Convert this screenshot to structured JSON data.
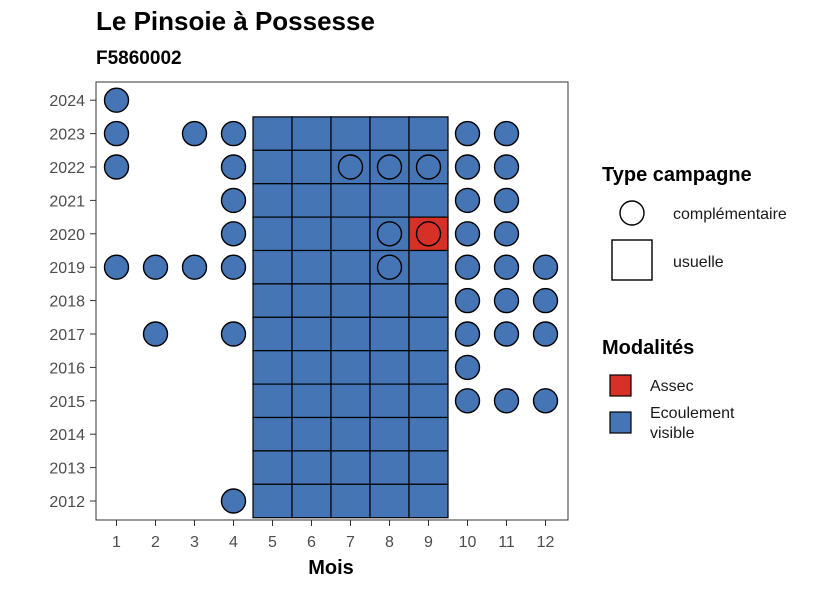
{
  "chart_data": {
    "type": "heatmap",
    "title": "Le Pinsoie à Possesse",
    "subtitle": "F5860002",
    "xlabel": "Mois",
    "ylabel": "",
    "x_categories": [
      "1",
      "2",
      "3",
      "4",
      "5",
      "6",
      "7",
      "8",
      "9",
      "10",
      "11",
      "12"
    ],
    "y_categories": [
      "2012",
      "2013",
      "2014",
      "2015",
      "2016",
      "2017",
      "2018",
      "2019",
      "2020",
      "2021",
      "2022",
      "2023",
      "2024"
    ],
    "colors": {
      "Assec": "#d73027",
      "Ecoulement visible": "#4575b4"
    },
    "grid": false,
    "legend_position": "right",
    "legends": [
      {
        "title": "Type campagne",
        "items": [
          {
            "label": "complémentaire",
            "shape": "circle"
          },
          {
            "label": "usuelle",
            "shape": "square"
          }
        ]
      },
      {
        "title": "Modalités",
        "items": [
          {
            "label": "Assec",
            "color": "#d73027"
          },
          {
            "label": "Ecoulement\nvisible",
            "color": "#4575b4"
          }
        ]
      }
    ],
    "usuelle": [
      {
        "year": "2023",
        "months": [
          5,
          6,
          7,
          8,
          9
        ],
        "modalite": "Ecoulement visible"
      },
      {
        "year": "2022",
        "months": [
          5,
          6,
          7,
          8,
          9
        ],
        "modalite": "Ecoulement visible"
      },
      {
        "year": "2021",
        "months": [
          5,
          6,
          7,
          8,
          9
        ],
        "modalite": "Ecoulement visible"
      },
      {
        "year": "2020",
        "months": [
          5,
          6,
          7,
          8
        ],
        "modalite": "Ecoulement visible"
      },
      {
        "year": "2020",
        "months": [
          9
        ],
        "modalite": "Assec"
      },
      {
        "year": "2019",
        "months": [
          5,
          6,
          7,
          8,
          9
        ],
        "modalite": "Ecoulement visible"
      },
      {
        "year": "2018",
        "months": [
          5,
          6,
          7,
          8,
          9
        ],
        "modalite": "Ecoulement visible"
      },
      {
        "year": "2017",
        "months": [
          5,
          6,
          7,
          8,
          9
        ],
        "modalite": "Ecoulement visible"
      },
      {
        "year": "2016",
        "months": [
          5,
          6,
          7,
          8,
          9
        ],
        "modalite": "Ecoulement visible"
      },
      {
        "year": "2015",
        "months": [
          5,
          6,
          7,
          8,
          9
        ],
        "modalite": "Ecoulement visible"
      },
      {
        "year": "2014",
        "months": [
          5,
          6,
          7,
          8,
          9
        ],
        "modalite": "Ecoulement visible"
      },
      {
        "year": "2013",
        "months": [
          5,
          6,
          7,
          8,
          9
        ],
        "modalite": "Ecoulement visible"
      },
      {
        "year": "2012",
        "months": [
          5,
          6,
          7,
          8,
          9
        ],
        "modalite": "Ecoulement visible"
      }
    ],
    "complementaire": [
      {
        "year": "2024",
        "months": [
          1
        ],
        "modalite": "Ecoulement visible"
      },
      {
        "year": "2023",
        "months": [
          1,
          3,
          4,
          10,
          11
        ],
        "modalite": "Ecoulement visible"
      },
      {
        "year": "2022",
        "months": [
          1,
          4,
          10,
          11
        ],
        "modalite": "Ecoulement visible"
      },
      {
        "year": "2022",
        "months": [
          7,
          8,
          9
        ],
        "modalite": "Ecoulement visible"
      },
      {
        "year": "2021",
        "months": [
          4,
          10,
          11
        ],
        "modalite": "Ecoulement visible"
      },
      {
        "year": "2020",
        "months": [
          4,
          8,
          9,
          10,
          11
        ],
        "modalite": "Ecoulement visible"
      },
      {
        "year": "2019",
        "months": [
          1,
          2,
          3,
          4,
          8,
          10,
          11,
          12
        ],
        "modalite": "Ecoulement visible"
      },
      {
        "year": "2018",
        "months": [
          10,
          11,
          12
        ],
        "modalite": "Ecoulement visible"
      },
      {
        "year": "2017",
        "months": [
          2,
          4,
          10,
          11,
          12
        ],
        "modalite": "Ecoulement visible"
      },
      {
        "year": "2016",
        "months": [
          10
        ],
        "modalite": "Ecoulement visible"
      },
      {
        "year": "2015",
        "months": [
          10,
          11,
          12
        ],
        "modalite": "Ecoulement visible"
      },
      {
        "year": "2012",
        "months": [
          4
        ],
        "modalite": "Ecoulement visible"
      }
    ]
  }
}
